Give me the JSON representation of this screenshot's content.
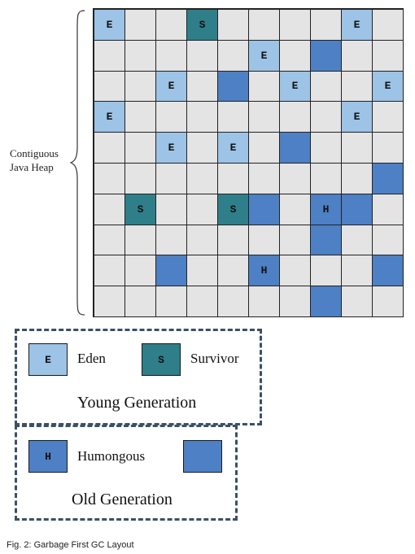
{
  "heap": {
    "label_lines": [
      "Contiguous",
      "Java Heap"
    ],
    "grid": [
      [
        "E",
        "",
        "",
        "S",
        "",
        "",
        "",
        "",
        "E",
        ""
      ],
      [
        "",
        "",
        "",
        "",
        "",
        "E",
        "",
        "O",
        "",
        ""
      ],
      [
        "",
        "",
        "E",
        "",
        "O",
        "",
        "E",
        "",
        "",
        "E"
      ],
      [
        "E",
        "",
        "",
        "",
        "",
        "",
        "",
        "",
        "E",
        ""
      ],
      [
        "",
        "",
        "E",
        "",
        "E",
        "",
        "O",
        "",
        "",
        ""
      ],
      [
        "",
        "",
        "",
        "",
        "",
        "",
        "",
        "",
        "",
        "O"
      ],
      [
        "",
        "S",
        "",
        "",
        "S",
        "O",
        "",
        "H",
        "O",
        ""
      ],
      [
        "",
        "",
        "",
        "",
        "",
        "",
        "",
        "O",
        "",
        ""
      ],
      [
        "",
        "",
        "O",
        "",
        "",
        "H",
        "",
        "",
        "",
        "O"
      ],
      [
        "",
        "",
        "",
        "",
        "",
        "",
        "",
        "O",
        "",
        ""
      ]
    ]
  },
  "region_letters": {
    "E": "E",
    "S": "S",
    "H": "H",
    "O": ""
  },
  "colors": {
    "free": "#e4e4e4",
    "eden": "#9dc3e6",
    "survivor": "#2e7f8a",
    "humongous": "#4d80c4",
    "old": "#4d80c4",
    "legend_border": "#3b5066"
  },
  "legend": {
    "young": {
      "eden_letter": "E",
      "eden_label": "Eden",
      "survivor_letter": "S",
      "survivor_label": "Survivor",
      "title": "Young Generation"
    },
    "old": {
      "humongous_letter": "H",
      "humongous_label": "Humongous",
      "title": "Old Generation"
    }
  },
  "caption": "Fig. 2: Garbage First GC Layout"
}
